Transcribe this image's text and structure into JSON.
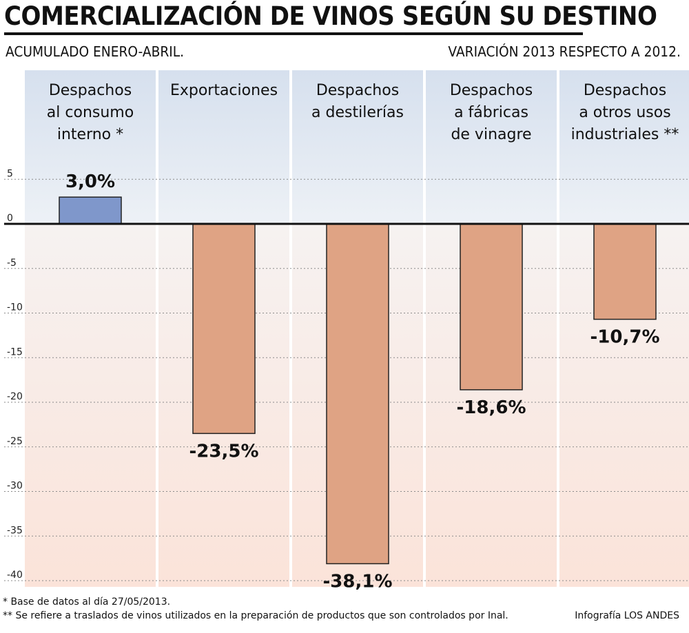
{
  "header": {
    "title": "COMERCIALIZACIÓN DE VINOS SEGÚN SU DESTINO",
    "subtitle_left": "ACUMULADO ENERO-ABRIL.",
    "subtitle_right": "VARIACIÓN 2013 RESPECTO A 2012."
  },
  "footer": {
    "note1": "* Base de datos al día 27/05/2013.",
    "note2": "** Se refiere a traslados de vinos utilizados en la preparación de productos que son controlados por Inal.",
    "credit": "Infografía LOS ANDES"
  },
  "colors": {
    "positive_bar": "#7f97cb",
    "negative_bar": "#dfa384",
    "upper_band": "#d6e0ee",
    "lower_band": "#fbe3d9"
  },
  "chart_data": {
    "type": "bar",
    "categories": [
      [
        "Despachos",
        "al consumo",
        "interno *"
      ],
      [
        "Exportaciones"
      ],
      [
        "Despachos",
        "a destilerías"
      ],
      [
        "Despachos",
        "a fábricas",
        "de vinagre"
      ],
      [
        "Despachos",
        "a otros usos",
        "industriales **"
      ]
    ],
    "values": [
      3.0,
      -23.5,
      -38.1,
      -18.6,
      -10.7
    ],
    "value_labels": [
      "3,0%",
      "-23,5%",
      "-38,1%",
      "-18,6%",
      "-10,7%"
    ],
    "yticks": [
      5,
      0,
      -5,
      -10,
      -15,
      -20,
      -25,
      -30,
      -35,
      -40
    ],
    "ylim": [
      -40,
      5
    ],
    "grid": true
  }
}
